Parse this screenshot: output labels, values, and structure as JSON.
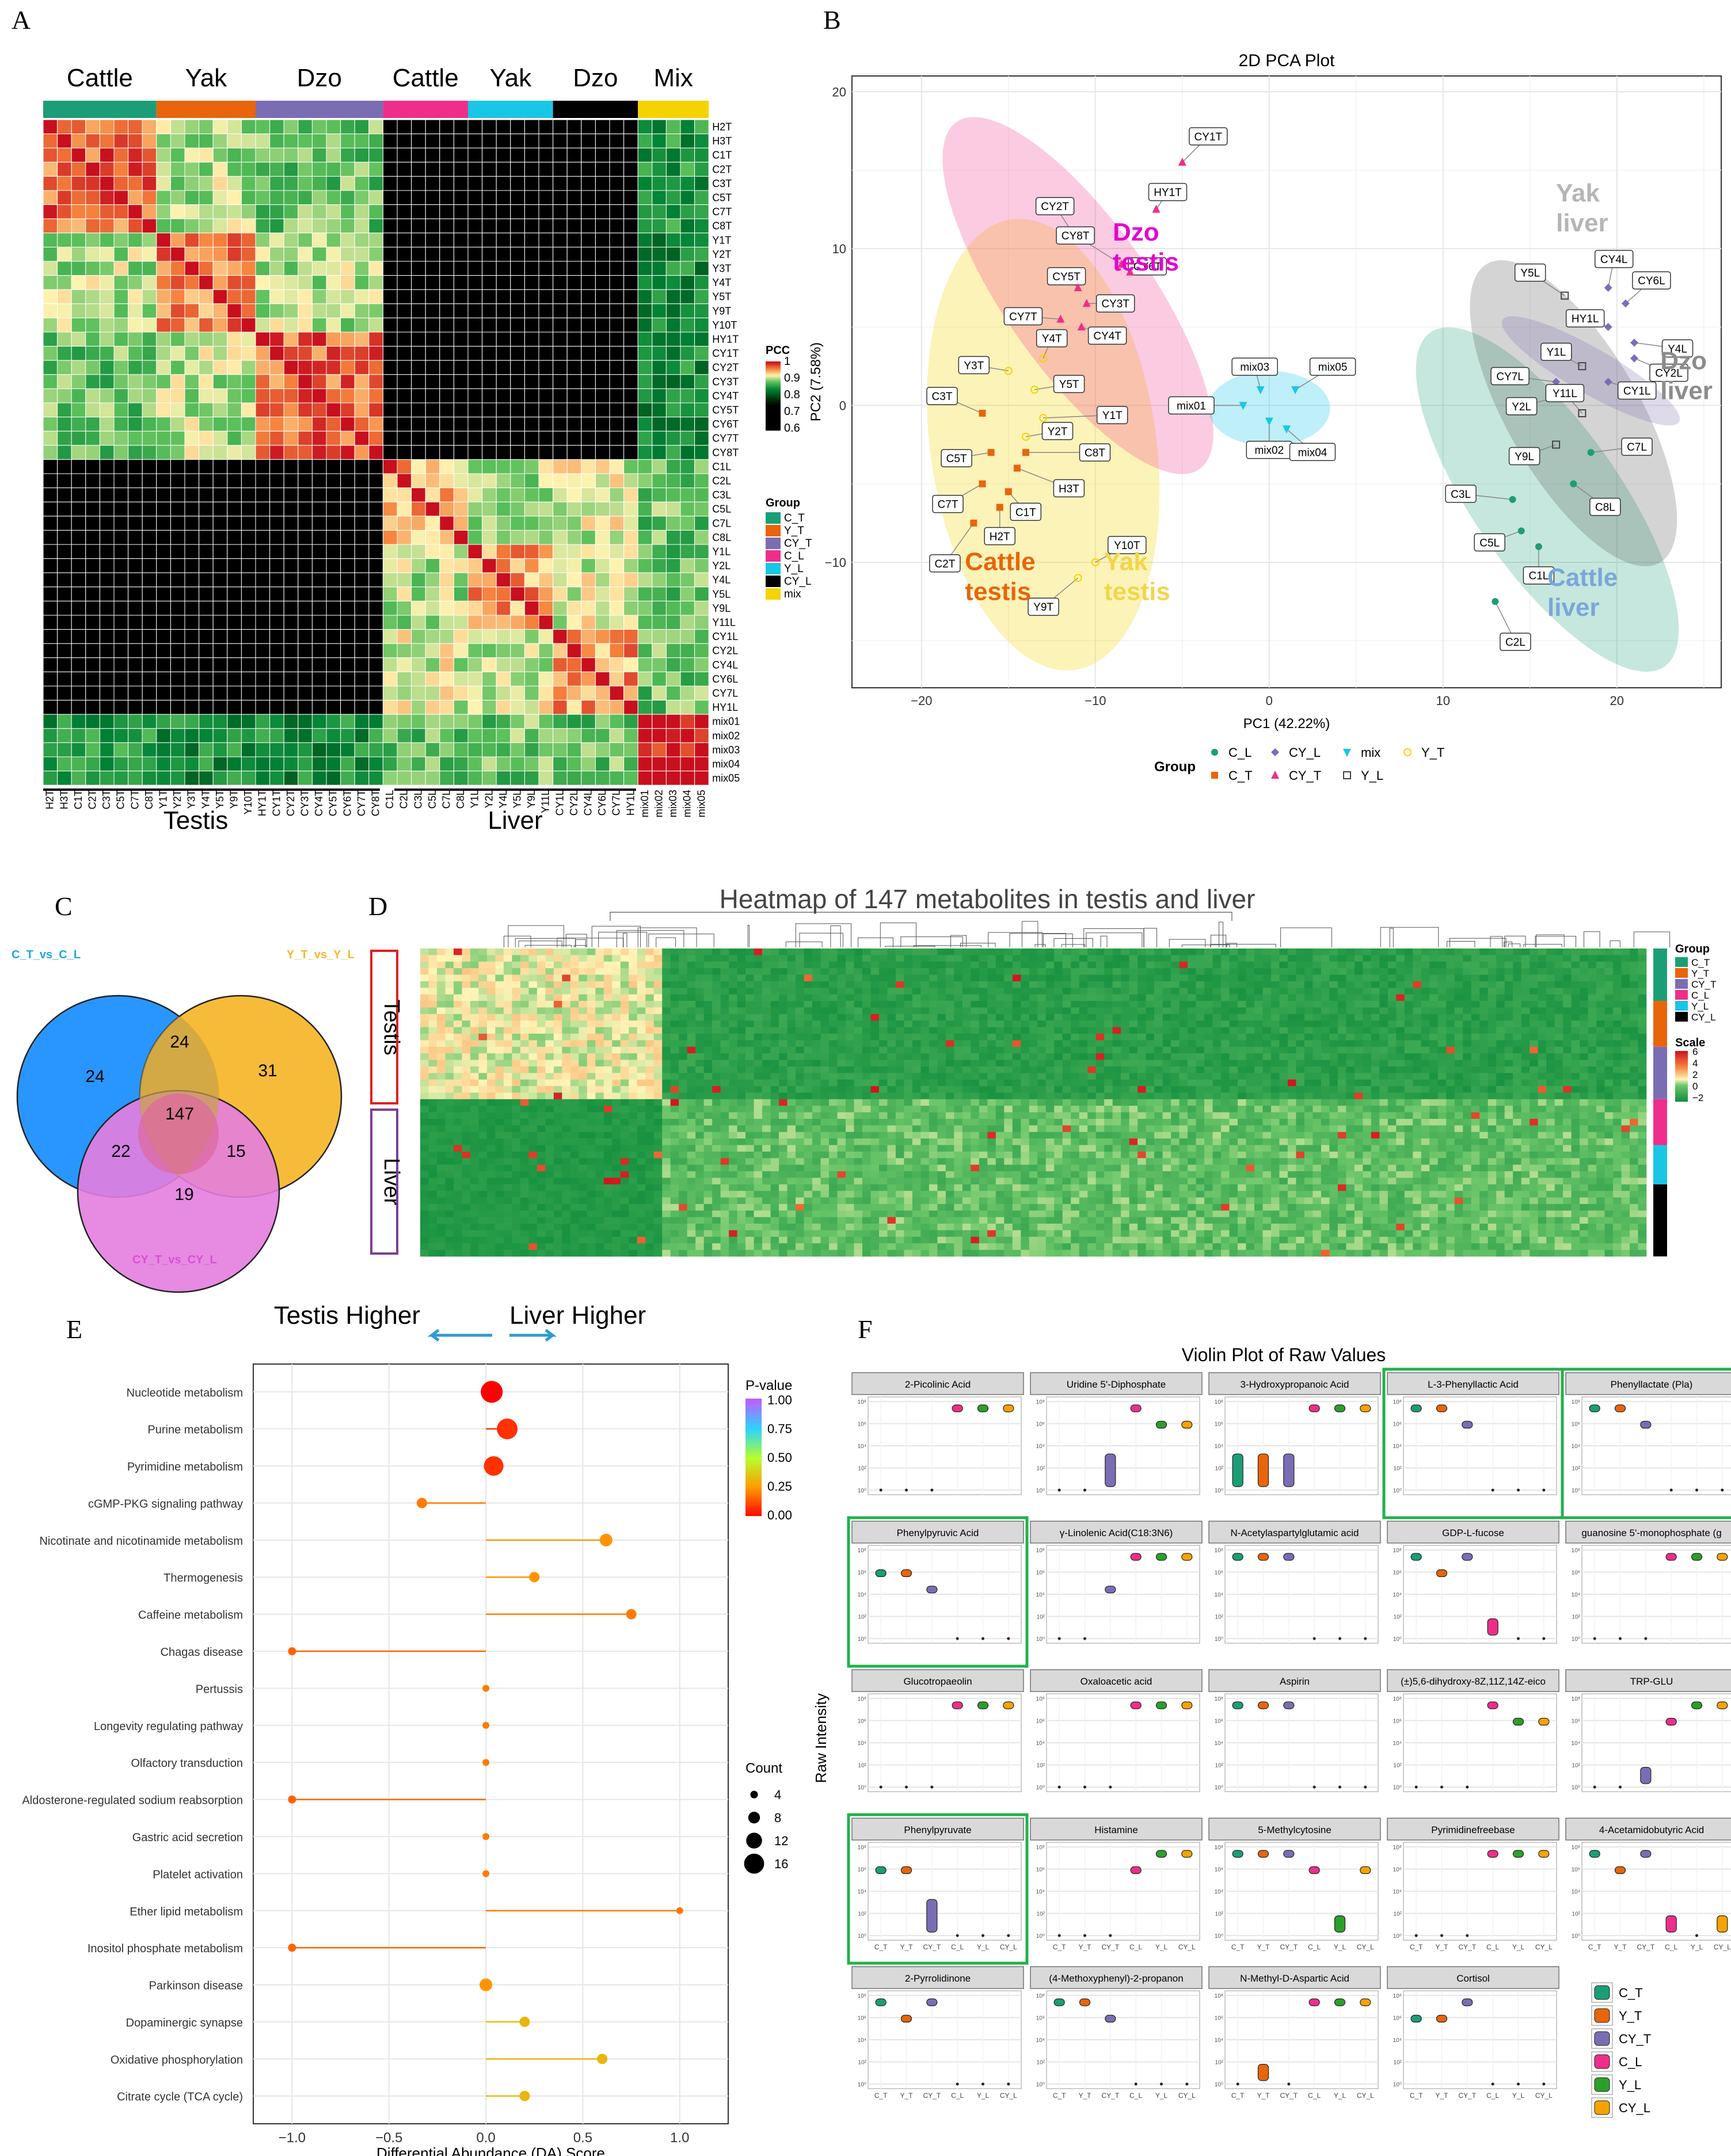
{
  "panels": {
    "A": "A",
    "B": "B",
    "C": "C",
    "D": "D",
    "E": "E",
    "F": "F"
  },
  "chart_data": [
    {
      "id": "A",
      "type": "heatmap",
      "title": "",
      "top_groups": [
        "Cattle",
        "Yak",
        "Dzo",
        "Cattle",
        "Yak",
        "Dzo",
        "Mix"
      ],
      "bottom_groups": [
        "Testis",
        "Liver"
      ],
      "samples": [
        "H2T",
        "H3T",
        "C1T",
        "C2T",
        "C3T",
        "C5T",
        "C7T",
        "C8T",
        "Y1T",
        "Y2T",
        "Y3T",
        "Y4T",
        "Y5T",
        "Y9T",
        "Y10T",
        "HY1T",
        "CY1T",
        "CY2T",
        "CY3T",
        "CY4T",
        "CY5T",
        "CY6T",
        "CY7T",
        "CY8T",
        "C1L",
        "C2L",
        "C3L",
        "C5L",
        "C7L",
        "C8L",
        "Y1L",
        "Y2L",
        "Y4L",
        "Y5L",
        "Y9L",
        "Y11L",
        "CY1L",
        "CY2L",
        "CY4L",
        "CY6L",
        "CY7L",
        "HY1L",
        "mix01",
        "mix02",
        "mix03",
        "mix04",
        "mix05"
      ],
      "legend_title": "PCC",
      "legend_ticks": [
        "1",
        "0.9",
        "0.8",
        "0.7",
        "0.6"
      ],
      "group_legend_title": "Group",
      "groups": [
        "C_T",
        "Y_T",
        "CY_T",
        "C_L",
        "Y_L",
        "CY_L",
        "mix"
      ],
      "group_colors": [
        "#1b9e77",
        "#e8650b",
        "#7b6db3",
        "#ee2e8a",
        "#19c6e6",
        "#000000",
        "#f5d300"
      ],
      "block_values": [
        [
          0.97,
          0.9,
          0.88,
          0.6,
          0.62,
          0.63,
          0.85
        ],
        [
          0.9,
          0.96,
          0.9,
          0.61,
          0.6,
          0.62,
          0.84
        ],
        [
          0.88,
          0.9,
          0.97,
          0.62,
          0.63,
          0.64,
          0.84
        ],
        [
          0.6,
          0.61,
          0.62,
          0.94,
          0.9,
          0.91,
          0.88
        ],
        [
          0.62,
          0.6,
          0.63,
          0.9,
          0.95,
          0.91,
          0.88
        ],
        [
          0.63,
          0.62,
          0.64,
          0.91,
          0.91,
          0.95,
          0.88
        ],
        [
          0.85,
          0.84,
          0.84,
          0.88,
          0.88,
          0.88,
          1.0
        ]
      ]
    },
    {
      "id": "B",
      "type": "scatter",
      "title": "2D PCA Plot",
      "xlabel": "PC1 (42.22%)",
      "ylabel": "PC2 (7.58%)",
      "xlim": [
        -24,
        26
      ],
      "ylim": [
        -18,
        21
      ],
      "xticks": [
        -20,
        -10,
        0,
        10,
        20
      ],
      "yticks": [
        -10,
        0,
        10,
        20
      ],
      "legend_title": "Group",
      "groups": [
        {
          "name": "C_L",
          "color": "#1b9e77",
          "shape": "circle"
        },
        {
          "name": "CY_L",
          "color": "#7b6db3",
          "shape": "diamond"
        },
        {
          "name": "mix",
          "color": "#19c6e6",
          "shape": "triangle-down"
        },
        {
          "name": "Y_T",
          "color": "#f5d300",
          "shape": "circle-open"
        },
        {
          "name": "C_T",
          "color": "#e8650b",
          "shape": "square"
        },
        {
          "name": "CY_T",
          "color": "#ee2e8a",
          "shape": "triangle"
        },
        {
          "name": "Y_L",
          "color": "#444444",
          "shape": "square-open"
        }
      ],
      "points": [
        {
          "label": "CY1T",
          "group": "CY_T",
          "x": -5.0,
          "y": 15.5
        },
        {
          "label": "HY1T",
          "group": "CY_T",
          "x": -6.5,
          "y": 12.5
        },
        {
          "label": "CY2T",
          "group": "CY_T",
          "x": -11.0,
          "y": 10.5
        },
        {
          "label": "CY8T",
          "group": "CY_T",
          "x": -8.5,
          "y": 9.0
        },
        {
          "label": "CY6T",
          "group": "CY_T",
          "x": -8.0,
          "y": 8.5
        },
        {
          "label": "CY5T",
          "group": "CY_T",
          "x": -11.0,
          "y": 7.5
        },
        {
          "label": "CY3T",
          "group": "CY_T",
          "x": -10.5,
          "y": 6.5
        },
        {
          "label": "CY7T",
          "group": "CY_T",
          "x": -12.0,
          "y": 5.5
        },
        {
          "label": "CY4T",
          "group": "CY_T",
          "x": -10.8,
          "y": 5.0
        },
        {
          "label": "Y4T",
          "group": "Y_T",
          "x": -13.0,
          "y": 3.0
        },
        {
          "label": "Y3T",
          "group": "Y_T",
          "x": -15.0,
          "y": 2.2
        },
        {
          "label": "Y5T",
          "group": "Y_T",
          "x": -13.5,
          "y": 1.0
        },
        {
          "label": "Y1T",
          "group": "Y_T",
          "x": -13.0,
          "y": -0.8
        },
        {
          "label": "C3T",
          "group": "C_T",
          "x": -16.5,
          "y": -0.5
        },
        {
          "label": "Y2T",
          "group": "Y_T",
          "x": -14.0,
          "y": -2.0
        },
        {
          "label": "C5T",
          "group": "C_T",
          "x": -16.0,
          "y": -3.0
        },
        {
          "label": "C8T",
          "group": "C_T",
          "x": -14.0,
          "y": -3.0
        },
        {
          "label": "H3T",
          "group": "C_T",
          "x": -14.5,
          "y": -4.0
        },
        {
          "label": "C7T",
          "group": "C_T",
          "x": -16.5,
          "y": -5.0
        },
        {
          "label": "C1T",
          "group": "C_T",
          "x": -15.0,
          "y": -5.5
        },
        {
          "label": "H2T",
          "group": "C_T",
          "x": -15.5,
          "y": -6.5
        },
        {
          "label": "C2T",
          "group": "C_T",
          "x": -17.0,
          "y": -7.5
        },
        {
          "label": "Y10T",
          "group": "Y_T",
          "x": -10.0,
          "y": -10.0
        },
        {
          "label": "Y9T",
          "group": "Y_T",
          "x": -11.0,
          "y": -11.0
        },
        {
          "label": "mix03",
          "group": "mix",
          "x": -0.5,
          "y": 1.0
        },
        {
          "label": "mix05",
          "group": "mix",
          "x": 1.5,
          "y": 1.0
        },
        {
          "label": "mix01",
          "group": "mix",
          "x": -1.5,
          "y": 0.0
        },
        {
          "label": "mix02",
          "group": "mix",
          "x": 0.0,
          "y": -1.0
        },
        {
          "label": "mix04",
          "group": "mix",
          "x": 1.0,
          "y": -1.5
        },
        {
          "label": "Y5L",
          "group": "Y_L",
          "x": 17.0,
          "y": 7.0
        },
        {
          "label": "CY4L",
          "group": "CY_L",
          "x": 19.5,
          "y": 7.5
        },
        {
          "label": "CY6L",
          "group": "CY_L",
          "x": 20.5,
          "y": 6.5
        },
        {
          "label": "HY1L",
          "group": "CY_L",
          "x": 19.5,
          "y": 5.0
        },
        {
          "label": "Y4L",
          "group": "CY_L",
          "x": 21.0,
          "y": 4.0
        },
        {
          "label": "Y1L",
          "group": "Y_L",
          "x": 18.0,
          "y": 2.5
        },
        {
          "label": "CY2L",
          "group": "CY_L",
          "x": 21.0,
          "y": 3.0
        },
        {
          "label": "CY7L",
          "group": "CY_L",
          "x": 16.5,
          "y": 1.5
        },
        {
          "label": "CY1L",
          "group": "CY_L",
          "x": 19.5,
          "y": 1.5
        },
        {
          "label": "Y2L",
          "group": "Y_L",
          "x": 16.5,
          "y": 0.5
        },
        {
          "label": "Y11L",
          "group": "Y_L",
          "x": 18.0,
          "y": -0.5
        },
        {
          "label": "Y9L",
          "group": "Y_L",
          "x": 16.5,
          "y": -2.5
        },
        {
          "label": "C7L",
          "group": "C_L",
          "x": 18.5,
          "y": -3.0
        },
        {
          "label": "C8L",
          "group": "C_L",
          "x": 17.5,
          "y": -5.0
        },
        {
          "label": "C3L",
          "group": "C_L",
          "x": 14.0,
          "y": -6.0
        },
        {
          "label": "C5L",
          "group": "C_L",
          "x": 14.5,
          "y": -8.0
        },
        {
          "label": "C1L",
          "group": "C_L",
          "x": 15.5,
          "y": -9.0
        },
        {
          "label": "C2L",
          "group": "C_L",
          "x": 13.0,
          "y": -12.5
        }
      ],
      "annotations": [
        {
          "text": "Dzo testis",
          "color": "#e500d0"
        },
        {
          "text": "Yak liver",
          "color": "#b5b5b5"
        },
        {
          "text": "Dzo liver",
          "color": "#8c8c8c"
        },
        {
          "text": "Cattle testis",
          "color": "#e8650b"
        },
        {
          "text": "Yak testis",
          "color": "#f3d54a"
        },
        {
          "text": "Cattle liver",
          "color": "#79a7d9"
        }
      ]
    },
    {
      "id": "C",
      "type": "venn",
      "sets": [
        "C_T_vs_C_L",
        "Y_T_vs_Y_L",
        "CY_T_vs_CY_L"
      ],
      "set_colors": [
        "#1e90ff",
        "#f5b82e",
        "#e47ddf"
      ],
      "label_colors": [
        "#1ea7e0",
        "#f5b82e",
        "#d94fd6"
      ],
      "regions": {
        "A_only": 24,
        "B_only": 31,
        "C_only": 19,
        "AB": 24,
        "AC": 22,
        "BC": 15,
        "ABC": 147
      }
    },
    {
      "id": "D",
      "type": "heatmap",
      "title": "Heatmap of 147 metabolites in testis and liver",
      "row_groups": [
        "Testis",
        "Liver"
      ],
      "legend_group_title": "Group",
      "groups": [
        "C_T",
        "Y_T",
        "CY_T",
        "C_L",
        "Y_L",
        "CY_L"
      ],
      "group_colors": [
        "#1b9e77",
        "#e8650b",
        "#7b6db3",
        "#ee2e8a",
        "#19c6e6",
        "#000000"
      ],
      "scale_title": "Scale",
      "scale_ticks": [
        "6",
        "4",
        "2",
        "0",
        "−2"
      ],
      "n_rows": 47,
      "n_cols": 147
    },
    {
      "id": "E",
      "type": "lollipop",
      "header_left": "Testis Higher",
      "header_right": "Liver Higher",
      "xlabel": "Differential Abundance (DA) Score",
      "xlim": [
        -1.2,
        1.25
      ],
      "xticks": [
        -1.0,
        -0.5,
        0.0,
        0.5,
        1.0
      ],
      "pathways": [
        "Nucleotide metabolism",
        "Purine metabolism",
        "Pyrimidine metabolism",
        "cGMP-PKG signaling pathway",
        "Nicotinate and nicotinamide metabolism",
        "Thermogenesis",
        "Caffeine metabolism",
        "Chagas disease",
        "Pertussis",
        "Longevity regulating pathway",
        "Olfactory transduction",
        "Aldosterone-regulated sodium reabsorption",
        "Gastric acid secretion",
        "Platelet activation",
        "Ether lipid metabolism",
        "Inositol phosphate metabolism",
        "Parkinson disease",
        "Dopaminergic synapse",
        "Oxidative phosphorylation",
        "Citrate cycle (TCA cycle)"
      ],
      "scores": [
        0.03,
        0.11,
        0.04,
        -0.33,
        0.62,
        0.25,
        0.75,
        -1.0,
        0.0,
        0.0,
        0.0,
        -1.0,
        0.0,
        0.0,
        1.0,
        -1.0,
        0.0,
        0.2,
        0.6,
        0.2
      ],
      "counts": [
        16,
        15,
        14,
        6,
        8,
        6,
        6,
        4,
        3,
        3,
        3,
        4,
        3,
        3,
        3,
        4,
        8,
        6,
        6,
        6
      ],
      "pvalues": [
        0.0,
        0.02,
        0.02,
        0.05,
        0.06,
        0.06,
        0.05,
        0.04,
        0.05,
        0.05,
        0.05,
        0.04,
        0.05,
        0.05,
        0.05,
        0.04,
        0.06,
        0.08,
        0.08,
        0.08
      ],
      "pvalue_legend_title": "P-value",
      "pvalue_ticks": [
        "1.00",
        "0.75",
        "0.50",
        "0.25",
        "0.00"
      ],
      "count_legend_title": "Count",
      "count_ticks": [
        "4",
        "8",
        "12",
        "16"
      ]
    },
    {
      "id": "F",
      "type": "violin",
      "title": "Violin Plot of Raw Values",
      "ylabel": "Raw Intensity",
      "x_categories": [
        "C_T",
        "Y_T",
        "CY_T",
        "C_L",
        "Y_L",
        "CY_L"
      ],
      "group_colors": [
        "#1b9e77",
        "#e8650b",
        "#7b6db3",
        "#ee2e8a",
        "#2aa02a",
        "#f5a300"
      ],
      "legend": [
        "C_T",
        "Y_T",
        "CY_T",
        "C_L",
        "Y_L",
        "CY_L"
      ],
      "facets": [
        "2-Picolinic Acid",
        "Uridine 5'-Diphosphate",
        "3-Hydroxypropanoic Acid",
        "L-3-Phenyllactic Acid",
        "Phenyllactate (Pla)",
        "Phenylpyruvic Acid",
        "γ-Linolenic Acid(C18:3N6)",
        "N-Acetylaspartylglutamic acid",
        "GDP-L-fucose",
        "guanosine 5'-monophosphate (ɡ",
        "Glucotropaeolin",
        "Oxaloacetic acid",
        "Aspirin",
        "(±)5,6-dihydroxy-8Z,11Z,14Z-eico",
        "TRP-GLU",
        "Phenylpyruvate",
        "Histamine",
        "5-Methylcytosine",
        "Pyrimidinefreebase",
        "4-Acetamidobutyric Acid",
        "2-Pyrrolidinone",
        "(4-Methoxyphenyl)-2-propanon",
        "N-Methyl-D-Aspartic Acid",
        "Cortisol"
      ],
      "highlighted": [
        "L-3-Phenyllactic Acid",
        "Phenyllactate (Pla)",
        "Phenylpyruvic Acid",
        "Phenylpyruvate"
      ],
      "facet_levels": [
        [
          0,
          0,
          0,
          5,
          5,
          5
        ],
        [
          0,
          0,
          2,
          5,
          4,
          4
        ],
        [
          2,
          2,
          2,
          5,
          5,
          5
        ],
        [
          5,
          5,
          4,
          0,
          0,
          0
        ],
        [
          5,
          5,
          4,
          0,
          0,
          0
        ],
        [
          4,
          4,
          3,
          0,
          0,
          0
        ],
        [
          0,
          0,
          3,
          5,
          5,
          5
        ],
        [
          5,
          5,
          5,
          0,
          0,
          0
        ],
        [
          5,
          4,
          5,
          1,
          0,
          0
        ],
        [
          0,
          0,
          0,
          5,
          5,
          5
        ],
        [
          0,
          0,
          0,
          5,
          5,
          5
        ],
        [
          0,
          0,
          0,
          5,
          5,
          5
        ],
        [
          5,
          5,
          5,
          0,
          0,
          0
        ],
        [
          0,
          0,
          0,
          5,
          4,
          4
        ],
        [
          0,
          0,
          1,
          4,
          5,
          5
        ],
        [
          4,
          4,
          2,
          0,
          0,
          0
        ],
        [
          0,
          0,
          0,
          4,
          5,
          5
        ],
        [
          5,
          5,
          5,
          4,
          1,
          4
        ],
        [
          0,
          0,
          0,
          5,
          5,
          5
        ],
        [
          5,
          4,
          5,
          1,
          0,
          1
        ],
        [
          5,
          4,
          5,
          0,
          0,
          0
        ],
        [
          5,
          5,
          4,
          0,
          0,
          0
        ],
        [
          0,
          1,
          0,
          5,
          5,
          5
        ],
        [
          4,
          4,
          5,
          0,
          0,
          0
        ]
      ]
    }
  ]
}
